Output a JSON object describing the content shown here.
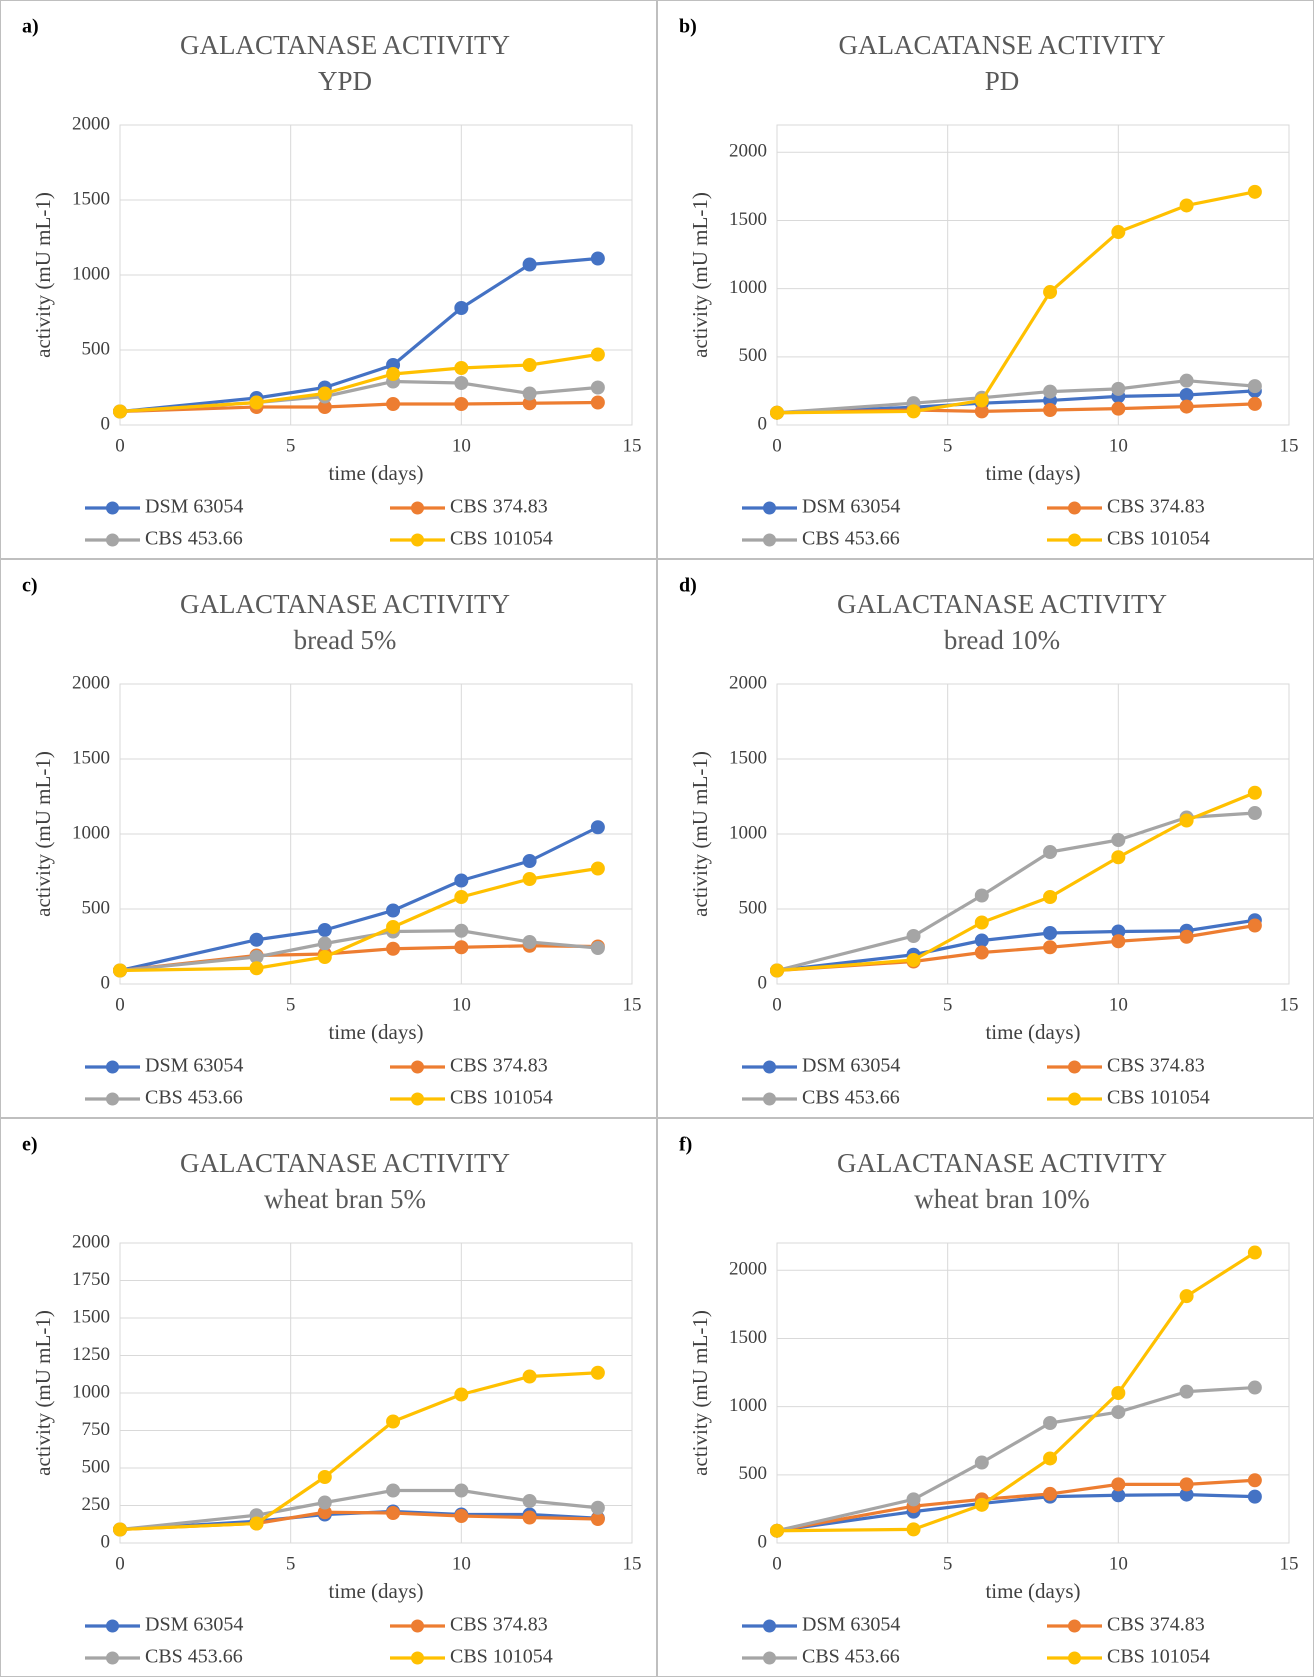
{
  "chart_data": [
    {
      "type": "line",
      "label": "a)",
      "title": "GALACTANASE ACTIVITY",
      "subtitle": "YPD",
      "x_label": "time (days)",
      "y_label": "activity (mU mL-1)",
      "x": [
        0,
        4,
        6,
        8,
        10,
        12,
        14
      ],
      "xlim": [
        0,
        15
      ],
      "xticks": [
        0,
        5,
        10,
        15
      ],
      "ylim": [
        0,
        2000
      ],
      "yticks": [
        0,
        500,
        1000,
        1500,
        2000
      ],
      "grid": true,
      "legend": "bottom",
      "series": [
        {
          "name": "DSM 63054",
          "color": "#4472c4",
          "values": [
            90,
            180,
            250,
            400,
            780,
            1070,
            1110
          ]
        },
        {
          "name": "CBS 374.83",
          "color": "#ed7d31",
          "values": [
            90,
            120,
            120,
            140,
            140,
            145,
            150
          ]
        },
        {
          "name": "CBS 453.66",
          "color": "#a5a5a5",
          "values": [
            90,
            150,
            190,
            290,
            280,
            210,
            250
          ]
        },
        {
          "name": "CBS 101054",
          "color": "#ffc000",
          "values": [
            90,
            150,
            210,
            340,
            380,
            400,
            470
          ]
        }
      ]
    },
    {
      "type": "line",
      "label": "b)",
      "title": "GALACATANSE ACTIVITY",
      "subtitle": "PD",
      "x_label": "time (days)",
      "y_label": "activity (mU mL-1)",
      "x": [
        0,
        4,
        6,
        8,
        10,
        12,
        14
      ],
      "xlim": [
        0,
        15
      ],
      "xticks": [
        0,
        5,
        10,
        15
      ],
      "ylim": [
        0,
        2200
      ],
      "yticks": [
        0,
        500,
        1000,
        1500,
        2000
      ],
      "grid": true,
      "legend": "bottom",
      "series": [
        {
          "name": "DSM 63054",
          "color": "#4472c4",
          "values": [
            90,
            130,
            160,
            180,
            210,
            220,
            250
          ]
        },
        {
          "name": "CBS 374.83",
          "color": "#ed7d31",
          "values": [
            90,
            110,
            100,
            110,
            120,
            135,
            155
          ]
        },
        {
          "name": "CBS 453.66",
          "color": "#a5a5a5",
          "values": [
            90,
            160,
            200,
            245,
            265,
            325,
            285
          ]
        },
        {
          "name": "CBS 101054",
          "color": "#ffc000",
          "values": [
            90,
            100,
            180,
            975,
            1415,
            1610,
            1710
          ]
        }
      ]
    },
    {
      "type": "line",
      "label": "c)",
      "title": "GALACTANASE ACTIVITY",
      "subtitle": "bread 5%",
      "x_label": "time (days)",
      "y_label": "activity (mU mL-1)",
      "x": [
        0,
        4,
        6,
        8,
        10,
        12,
        14
      ],
      "xlim": [
        0,
        15
      ],
      "xticks": [
        0,
        5,
        10,
        15
      ],
      "ylim": [
        0,
        2000
      ],
      "yticks": [
        0,
        500,
        1000,
        1500,
        2000
      ],
      "grid": true,
      "legend": "bottom",
      "series": [
        {
          "name": "DSM 63054",
          "color": "#4472c4",
          "values": [
            90,
            295,
            360,
            490,
            690,
            820,
            1045
          ]
        },
        {
          "name": "CBS 374.83",
          "color": "#ed7d31",
          "values": [
            90,
            190,
            200,
            235,
            245,
            255,
            250
          ]
        },
        {
          "name": "CBS 453.66",
          "color": "#a5a5a5",
          "values": [
            90,
            180,
            270,
            350,
            355,
            280,
            240
          ]
        },
        {
          "name": "CBS 101054",
          "color": "#ffc000",
          "values": [
            90,
            105,
            180,
            380,
            580,
            700,
            770
          ]
        }
      ]
    },
    {
      "type": "line",
      "label": "d)",
      "title": "GALACTANASE ACTIVITY",
      "subtitle": "bread 10%",
      "x_label": "time (days)",
      "y_label": "activity (mU mL-1)",
      "x": [
        0,
        4,
        6,
        8,
        10,
        12,
        14
      ],
      "xlim": [
        0,
        15
      ],
      "xticks": [
        0,
        5,
        10,
        15
      ],
      "ylim": [
        0,
        2000
      ],
      "yticks": [
        0,
        500,
        1000,
        1500,
        2000
      ],
      "grid": true,
      "legend": "bottom",
      "series": [
        {
          "name": "DSM 63054",
          "color": "#4472c4",
          "values": [
            90,
            195,
            290,
            340,
            350,
            355,
            425
          ]
        },
        {
          "name": "CBS 374.83",
          "color": "#ed7d31",
          "values": [
            90,
            150,
            210,
            245,
            285,
            315,
            390
          ]
        },
        {
          "name": "CBS 453.66",
          "color": "#a5a5a5",
          "values": [
            90,
            320,
            590,
            880,
            960,
            1110,
            1140
          ]
        },
        {
          "name": "CBS 101054",
          "color": "#ffc000",
          "values": [
            90,
            160,
            410,
            580,
            845,
            1090,
            1275
          ]
        }
      ]
    },
    {
      "type": "line",
      "label": "e)",
      "title": "GALACTANASE ACTIVITY",
      "subtitle": "wheat bran 5%",
      "x_label": "time (days)",
      "y_label": "activity (mU mL-1)",
      "x": [
        0,
        4,
        6,
        8,
        10,
        12,
        14
      ],
      "xlim": [
        0,
        15
      ],
      "xticks": [
        0,
        5,
        10,
        15
      ],
      "ylim": [
        0,
        2000
      ],
      "yticks": [
        0,
        250,
        500,
        750,
        1000,
        1250,
        1500,
        1750,
        2000
      ],
      "grid": true,
      "legend": "bottom",
      "series": [
        {
          "name": "DSM 63054",
          "color": "#4472c4",
          "values": [
            90,
            145,
            190,
            210,
            190,
            190,
            165
          ]
        },
        {
          "name": "CBS 374.83",
          "color": "#ed7d31",
          "values": [
            90,
            130,
            205,
            200,
            180,
            170,
            160
          ]
        },
        {
          "name": "CBS 453.66",
          "color": "#a5a5a5",
          "values": [
            90,
            185,
            270,
            350,
            350,
            280,
            235
          ]
        },
        {
          "name": "CBS 101054",
          "color": "#ffc000",
          "values": [
            90,
            130,
            440,
            810,
            990,
            1110,
            1135
          ]
        }
      ]
    },
    {
      "type": "line",
      "label": "f)",
      "title": "GALACTANASE ACTIVITY",
      "subtitle": "wheat bran 10%",
      "x_label": "time (days)",
      "y_label": "activity (mU mL-1)",
      "x": [
        0,
        4,
        6,
        8,
        10,
        12,
        14
      ],
      "xlim": [
        0,
        15
      ],
      "xticks": [
        0,
        5,
        10,
        15
      ],
      "ylim": [
        0,
        2200
      ],
      "yticks": [
        0,
        500,
        1000,
        1500,
        2000
      ],
      "grid": true,
      "legend": "bottom",
      "series": [
        {
          "name": "DSM 63054",
          "color": "#4472c4",
          "values": [
            90,
            230,
            290,
            340,
            350,
            355,
            340
          ]
        },
        {
          "name": "CBS 374.83",
          "color": "#ed7d31",
          "values": [
            90,
            270,
            320,
            360,
            430,
            430,
            460
          ]
        },
        {
          "name": "CBS 453.66",
          "color": "#a5a5a5",
          "values": [
            90,
            320,
            590,
            880,
            960,
            1110,
            1140
          ]
        },
        {
          "name": "CBS 101054",
          "color": "#ffc000",
          "values": [
            90,
            100,
            280,
            620,
            1100,
            1810,
            2130
          ]
        }
      ]
    }
  ]
}
